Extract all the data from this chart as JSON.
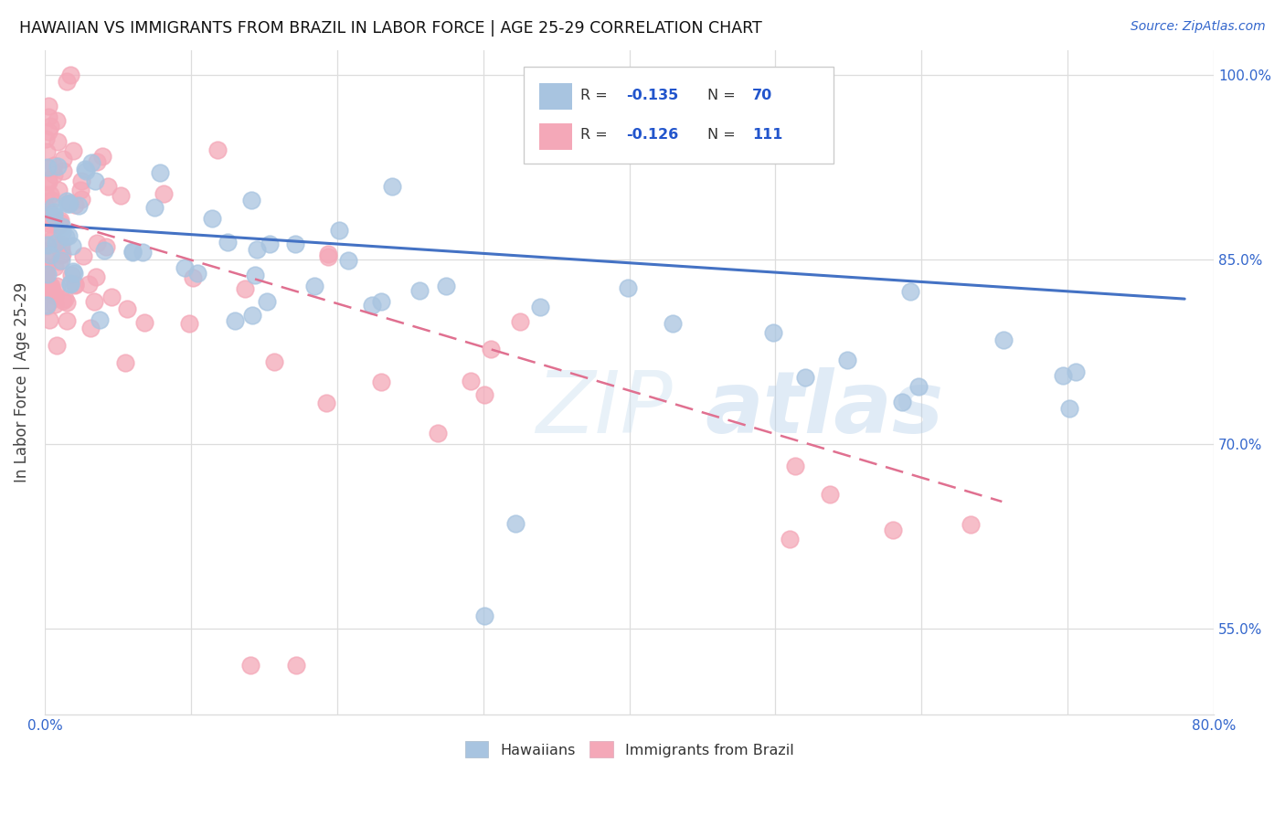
{
  "title": "HAWAIIAN VS IMMIGRANTS FROM BRAZIL IN LABOR FORCE | AGE 25-29 CORRELATION CHART",
  "source": "Source: ZipAtlas.com",
  "ylabel": "In Labor Force | Age 25-29",
  "xlim": [
    0.0,
    0.8
  ],
  "ylim": [
    0.48,
    1.02
  ],
  "x_tick_positions": [
    0.0,
    0.1,
    0.2,
    0.3,
    0.4,
    0.5,
    0.6,
    0.7,
    0.8
  ],
  "x_tick_labels": [
    "0.0%",
    "",
    "",
    "",
    "",
    "",
    "",
    "",
    "80.0%"
  ],
  "y_tick_positions": [
    0.55,
    0.7,
    0.85,
    1.0
  ],
  "y_tick_labels": [
    "55.0%",
    "70.0%",
    "85.0%",
    "100.0%"
  ],
  "hawaiian_color": "#a8c4e0",
  "brazil_color": "#f4a8b8",
  "hawaiian_line_color": "#4472c4",
  "brazil_line_color": "#e07090",
  "legend_R_color": "#2255cc",
  "legend_N_color": "#2255cc",
  "hawaiian_R": -0.135,
  "hawaiian_N": 70,
  "brazil_R": -0.126,
  "brazil_N": 111,
  "grid_color": "#dddddd",
  "tick_color": "#3366cc",
  "title_color": "#111111",
  "source_color": "#3366cc",
  "watermark_text": "ZIPatlas",
  "bottom_legend_label1": "Hawaiians",
  "bottom_legend_label2": "Immigrants from Brazil"
}
